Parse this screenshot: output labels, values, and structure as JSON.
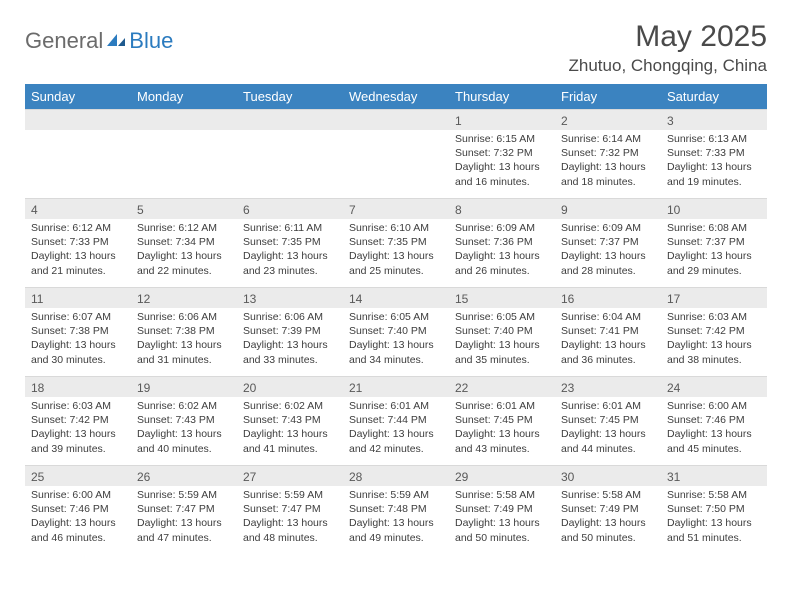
{
  "logo": {
    "text_gray": "General",
    "text_blue": "Blue"
  },
  "title": "May 2025",
  "location": "Zhutuo, Chongqing, China",
  "colors": {
    "header_bg": "#3b83c0",
    "header_text": "#ffffff",
    "daynum_bg": "#ebebeb",
    "daynum_text": "#595959",
    "body_text": "#3d3d3d",
    "border": "#d9d9d9",
    "logo_blue": "#2b7bbf",
    "logo_gray": "#6b6b6b"
  },
  "weekdays": [
    "Sunday",
    "Monday",
    "Tuesday",
    "Wednesday",
    "Thursday",
    "Friday",
    "Saturday"
  ],
  "weeks": [
    [
      {
        "n": "",
        "sr": "",
        "ss": "",
        "dl": ""
      },
      {
        "n": "",
        "sr": "",
        "ss": "",
        "dl": ""
      },
      {
        "n": "",
        "sr": "",
        "ss": "",
        "dl": ""
      },
      {
        "n": "",
        "sr": "",
        "ss": "",
        "dl": ""
      },
      {
        "n": "1",
        "sr": "Sunrise: 6:15 AM",
        "ss": "Sunset: 7:32 PM",
        "dl": "Daylight: 13 hours and 16 minutes."
      },
      {
        "n": "2",
        "sr": "Sunrise: 6:14 AM",
        "ss": "Sunset: 7:32 PM",
        "dl": "Daylight: 13 hours and 18 minutes."
      },
      {
        "n": "3",
        "sr": "Sunrise: 6:13 AM",
        "ss": "Sunset: 7:33 PM",
        "dl": "Daylight: 13 hours and 19 minutes."
      }
    ],
    [
      {
        "n": "4",
        "sr": "Sunrise: 6:12 AM",
        "ss": "Sunset: 7:33 PM",
        "dl": "Daylight: 13 hours and 21 minutes."
      },
      {
        "n": "5",
        "sr": "Sunrise: 6:12 AM",
        "ss": "Sunset: 7:34 PM",
        "dl": "Daylight: 13 hours and 22 minutes."
      },
      {
        "n": "6",
        "sr": "Sunrise: 6:11 AM",
        "ss": "Sunset: 7:35 PM",
        "dl": "Daylight: 13 hours and 23 minutes."
      },
      {
        "n": "7",
        "sr": "Sunrise: 6:10 AM",
        "ss": "Sunset: 7:35 PM",
        "dl": "Daylight: 13 hours and 25 minutes."
      },
      {
        "n": "8",
        "sr": "Sunrise: 6:09 AM",
        "ss": "Sunset: 7:36 PM",
        "dl": "Daylight: 13 hours and 26 minutes."
      },
      {
        "n": "9",
        "sr": "Sunrise: 6:09 AM",
        "ss": "Sunset: 7:37 PM",
        "dl": "Daylight: 13 hours and 28 minutes."
      },
      {
        "n": "10",
        "sr": "Sunrise: 6:08 AM",
        "ss": "Sunset: 7:37 PM",
        "dl": "Daylight: 13 hours and 29 minutes."
      }
    ],
    [
      {
        "n": "11",
        "sr": "Sunrise: 6:07 AM",
        "ss": "Sunset: 7:38 PM",
        "dl": "Daylight: 13 hours and 30 minutes."
      },
      {
        "n": "12",
        "sr": "Sunrise: 6:06 AM",
        "ss": "Sunset: 7:38 PM",
        "dl": "Daylight: 13 hours and 31 minutes."
      },
      {
        "n": "13",
        "sr": "Sunrise: 6:06 AM",
        "ss": "Sunset: 7:39 PM",
        "dl": "Daylight: 13 hours and 33 minutes."
      },
      {
        "n": "14",
        "sr": "Sunrise: 6:05 AM",
        "ss": "Sunset: 7:40 PM",
        "dl": "Daylight: 13 hours and 34 minutes."
      },
      {
        "n": "15",
        "sr": "Sunrise: 6:05 AM",
        "ss": "Sunset: 7:40 PM",
        "dl": "Daylight: 13 hours and 35 minutes."
      },
      {
        "n": "16",
        "sr": "Sunrise: 6:04 AM",
        "ss": "Sunset: 7:41 PM",
        "dl": "Daylight: 13 hours and 36 minutes."
      },
      {
        "n": "17",
        "sr": "Sunrise: 6:03 AM",
        "ss": "Sunset: 7:42 PM",
        "dl": "Daylight: 13 hours and 38 minutes."
      }
    ],
    [
      {
        "n": "18",
        "sr": "Sunrise: 6:03 AM",
        "ss": "Sunset: 7:42 PM",
        "dl": "Daylight: 13 hours and 39 minutes."
      },
      {
        "n": "19",
        "sr": "Sunrise: 6:02 AM",
        "ss": "Sunset: 7:43 PM",
        "dl": "Daylight: 13 hours and 40 minutes."
      },
      {
        "n": "20",
        "sr": "Sunrise: 6:02 AM",
        "ss": "Sunset: 7:43 PM",
        "dl": "Daylight: 13 hours and 41 minutes."
      },
      {
        "n": "21",
        "sr": "Sunrise: 6:01 AM",
        "ss": "Sunset: 7:44 PM",
        "dl": "Daylight: 13 hours and 42 minutes."
      },
      {
        "n": "22",
        "sr": "Sunrise: 6:01 AM",
        "ss": "Sunset: 7:45 PM",
        "dl": "Daylight: 13 hours and 43 minutes."
      },
      {
        "n": "23",
        "sr": "Sunrise: 6:01 AM",
        "ss": "Sunset: 7:45 PM",
        "dl": "Daylight: 13 hours and 44 minutes."
      },
      {
        "n": "24",
        "sr": "Sunrise: 6:00 AM",
        "ss": "Sunset: 7:46 PM",
        "dl": "Daylight: 13 hours and 45 minutes."
      }
    ],
    [
      {
        "n": "25",
        "sr": "Sunrise: 6:00 AM",
        "ss": "Sunset: 7:46 PM",
        "dl": "Daylight: 13 hours and 46 minutes."
      },
      {
        "n": "26",
        "sr": "Sunrise: 5:59 AM",
        "ss": "Sunset: 7:47 PM",
        "dl": "Daylight: 13 hours and 47 minutes."
      },
      {
        "n": "27",
        "sr": "Sunrise: 5:59 AM",
        "ss": "Sunset: 7:47 PM",
        "dl": "Daylight: 13 hours and 48 minutes."
      },
      {
        "n": "28",
        "sr": "Sunrise: 5:59 AM",
        "ss": "Sunset: 7:48 PM",
        "dl": "Daylight: 13 hours and 49 minutes."
      },
      {
        "n": "29",
        "sr": "Sunrise: 5:58 AM",
        "ss": "Sunset: 7:49 PM",
        "dl": "Daylight: 13 hours and 50 minutes."
      },
      {
        "n": "30",
        "sr": "Sunrise: 5:58 AM",
        "ss": "Sunset: 7:49 PM",
        "dl": "Daylight: 13 hours and 50 minutes."
      },
      {
        "n": "31",
        "sr": "Sunrise: 5:58 AM",
        "ss": "Sunset: 7:50 PM",
        "dl": "Daylight: 13 hours and 51 minutes."
      }
    ]
  ]
}
